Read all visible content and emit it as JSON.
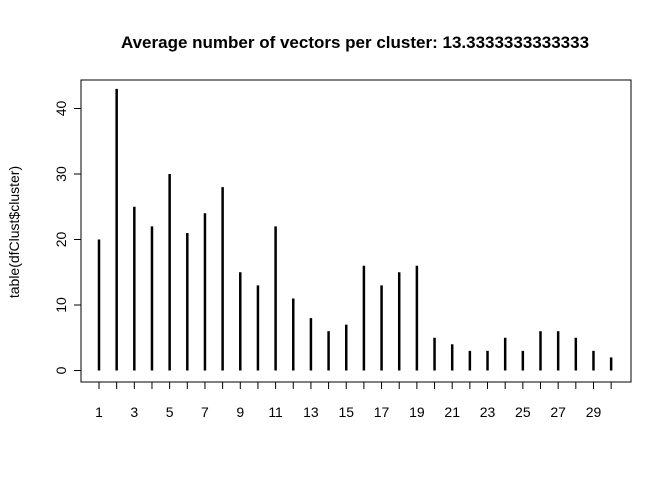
{
  "chart_data": {
    "type": "bar",
    "title": "Average number of vectors per cluster: 13.3333333333333",
    "xlabel": "",
    "ylabel": "table(dfClust$cluster)",
    "categories": [
      1,
      2,
      3,
      4,
      5,
      6,
      7,
      8,
      9,
      10,
      11,
      12,
      13,
      14,
      15,
      16,
      17,
      18,
      19,
      20,
      21,
      22,
      23,
      24,
      25,
      26,
      27,
      28,
      29,
      30
    ],
    "values": [
      20,
      43,
      25,
      22,
      30,
      21,
      24,
      28,
      15,
      13,
      22,
      11,
      8,
      6,
      7,
      16,
      13,
      15,
      16,
      5,
      4,
      3,
      3,
      5,
      3,
      6,
      6,
      5,
      3,
      2
    ],
    "x_tick_labels": [
      "1",
      "3",
      "5",
      "7",
      "9",
      "11",
      "13",
      "15",
      "17",
      "19",
      "21",
      "23",
      "25",
      "27",
      "29"
    ],
    "y_ticks": [
      0,
      10,
      20,
      30,
      40
    ],
    "ylim": [
      0,
      45
    ],
    "grid": false,
    "legend": "none"
  }
}
